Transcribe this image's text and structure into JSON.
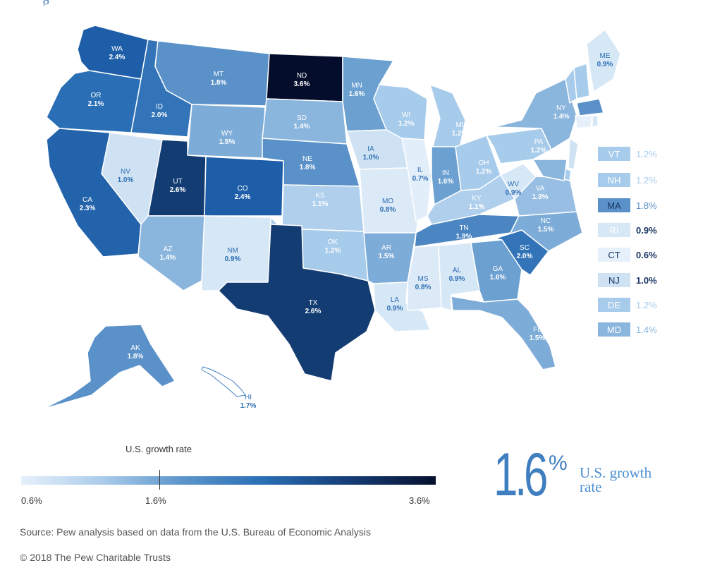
{
  "title_fragment": "g",
  "states": [
    {
      "abbr": "WA",
      "value": "2.4%",
      "fill": "#1e5ea8",
      "text": "white"
    },
    {
      "abbr": "OR",
      "value": "2.1%",
      "fill": "#2a6fb5",
      "text": "white"
    },
    {
      "abbr": "CA",
      "value": "2.3%",
      "fill": "#2363ac",
      "text": "white"
    },
    {
      "abbr": "ID",
      "value": "2.0%",
      "fill": "#3373b8",
      "text": "white"
    },
    {
      "abbr": "NV",
      "value": "1.0%",
      "fill": "#cfe2f4",
      "text": "blue"
    },
    {
      "abbr": "MT",
      "value": "1.8%",
      "fill": "#5a91c9",
      "text": "white"
    },
    {
      "abbr": "WY",
      "value": "1.5%",
      "fill": "#7eacd8",
      "text": "white"
    },
    {
      "abbr": "UT",
      "value": "2.6%",
      "fill": "#133c72",
      "text": "white"
    },
    {
      "abbr": "CO",
      "value": "2.4%",
      "fill": "#1e5ea8",
      "text": "white"
    },
    {
      "abbr": "AZ",
      "value": "1.4%",
      "fill": "#8ab5dd",
      "text": "white"
    },
    {
      "abbr": "NM",
      "value": "0.9%",
      "fill": "#d6e7f6",
      "text": "blue"
    },
    {
      "abbr": "ND",
      "value": "3.6%",
      "fill": "#050d2c",
      "text": "white"
    },
    {
      "abbr": "SD",
      "value": "1.4%",
      "fill": "#8ab5dd",
      "text": "white"
    },
    {
      "abbr": "NE",
      "value": "1.8%",
      "fill": "#5a91c9",
      "text": "white"
    },
    {
      "abbr": "KS",
      "value": "1.1%",
      "fill": "#afcfec",
      "text": "white"
    },
    {
      "abbr": "OK",
      "value": "1.2%",
      "fill": "#a7cbea",
      "text": "white"
    },
    {
      "abbr": "TX",
      "value": "2.6%",
      "fill": "#133c72",
      "text": "white"
    },
    {
      "abbr": "MN",
      "value": "1.6%",
      "fill": "#6ca0d1",
      "text": "white"
    },
    {
      "abbr": "IA",
      "value": "1.0%",
      "fill": "#cfe2f4",
      "text": "blue"
    },
    {
      "abbr": "MO",
      "value": "0.8%",
      "fill": "#dce9f6",
      "text": "blue"
    },
    {
      "abbr": "AR",
      "value": "1.5%",
      "fill": "#7eacd8",
      "text": "white"
    },
    {
      "abbr": "LA",
      "value": "0.9%",
      "fill": "#d6e7f6",
      "text": "blue"
    },
    {
      "abbr": "WI",
      "value": "1.2%",
      "fill": "#a7cbea",
      "text": "white"
    },
    {
      "abbr": "IL",
      "value": "0.7%",
      "fill": "#e2eef9",
      "text": "blue"
    },
    {
      "abbr": "MI",
      "value": "1.2%",
      "fill": "#a7cbea",
      "text": "white"
    },
    {
      "abbr": "IN",
      "value": "1.6%",
      "fill": "#6ca0d1",
      "text": "white"
    },
    {
      "abbr": "OH",
      "value": "1.2%",
      "fill": "#a7cbea",
      "text": "white"
    },
    {
      "abbr": "KY",
      "value": "1.1%",
      "fill": "#afcfec",
      "text": "white"
    },
    {
      "abbr": "TN",
      "value": "1.9%",
      "fill": "#4c86c2",
      "text": "white"
    },
    {
      "abbr": "MS",
      "value": "0.8%",
      "fill": "#dce9f6",
      "text": "blue"
    },
    {
      "abbr": "AL",
      "value": "0.9%",
      "fill": "#d6e7f6",
      "text": "blue"
    },
    {
      "abbr": "GA",
      "value": "1.6%",
      "fill": "#6ca0d1",
      "text": "white"
    },
    {
      "abbr": "FL",
      "value": "1.5%",
      "fill": "#7eacd8",
      "text": "white"
    },
    {
      "abbr": "SC",
      "value": "2.0%",
      "fill": "#3373b8",
      "text": "white"
    },
    {
      "abbr": "NC",
      "value": "1.5%",
      "fill": "#7eacd8",
      "text": "white"
    },
    {
      "abbr": "VA",
      "value": "1.3%",
      "fill": "#98bfe3",
      "text": "white"
    },
    {
      "abbr": "WV",
      "value": "0.9%",
      "fill": "#d6e7f6",
      "text": "blue"
    },
    {
      "abbr": "PA",
      "value": "1.2%",
      "fill": "#a7cbea",
      "text": "white"
    },
    {
      "abbr": "NY",
      "value": "1.4%",
      "fill": "#8ab5dd",
      "text": "white"
    },
    {
      "abbr": "ME",
      "value": "0.9%",
      "fill": "#d6e7f6",
      "text": "blue"
    },
    {
      "abbr": "AK",
      "value": "1.8%",
      "fill": "#5a91c9",
      "text": "white"
    },
    {
      "abbr": "HI",
      "value": "1.7%",
      "fill": "#ffffff",
      "text": "blue"
    }
  ],
  "small_states": [
    {
      "abbr": "VT",
      "value": "1.2%",
      "fill": "#a7cbea",
      "text_color": "#ffffff",
      "value_color": "#a7cbea",
      "bold": false
    },
    {
      "abbr": "NH",
      "value": "1.2%",
      "fill": "#a7cbea",
      "text_color": "#ffffff",
      "value_color": "#a7cbea",
      "bold": false
    },
    {
      "abbr": "MA",
      "value": "1.8%",
      "fill": "#5a91c9",
      "text_color": "#1a3563",
      "value_color": "#5a91c9",
      "bold": false
    },
    {
      "abbr": "RI",
      "value": "0.9%",
      "fill": "#d6e7f6",
      "text_color": "#ffffff",
      "value_color": "#1a3563",
      "bold": true
    },
    {
      "abbr": "CT",
      "value": "0.6%",
      "fill": "#e6f0fb",
      "text_color": "#1a3563",
      "value_color": "#1a3563",
      "bold": true
    },
    {
      "abbr": "NJ",
      "value": "1.0%",
      "fill": "#cfe2f4",
      "text_color": "#1a3563",
      "value_color": "#1a3563",
      "bold": true
    },
    {
      "abbr": "DE",
      "value": "1.2%",
      "fill": "#a7cbea",
      "text_color": "#ffffff",
      "value_color": "#a7cbea",
      "bold": false
    },
    {
      "abbr": "MD",
      "value": "1.4%",
      "fill": "#8ab5dd",
      "text_color": "#ffffff",
      "value_color": "#8ab5dd",
      "bold": false
    }
  ],
  "legend": {
    "title": "U.S. growth rate",
    "min_label": "0.6%",
    "mid_label": "1.6%",
    "max_label": "3.6%",
    "min": 0.6,
    "mid": 1.6,
    "max": 3.6
  },
  "highlight": {
    "number": "1.6",
    "percent": "%",
    "description": "U.S. growth rate"
  },
  "source": "Source: Pew analysis based on data from the U.S. Bureau of Economic Analysis",
  "copyright": "© 2018 The Pew Charitable Trusts"
}
